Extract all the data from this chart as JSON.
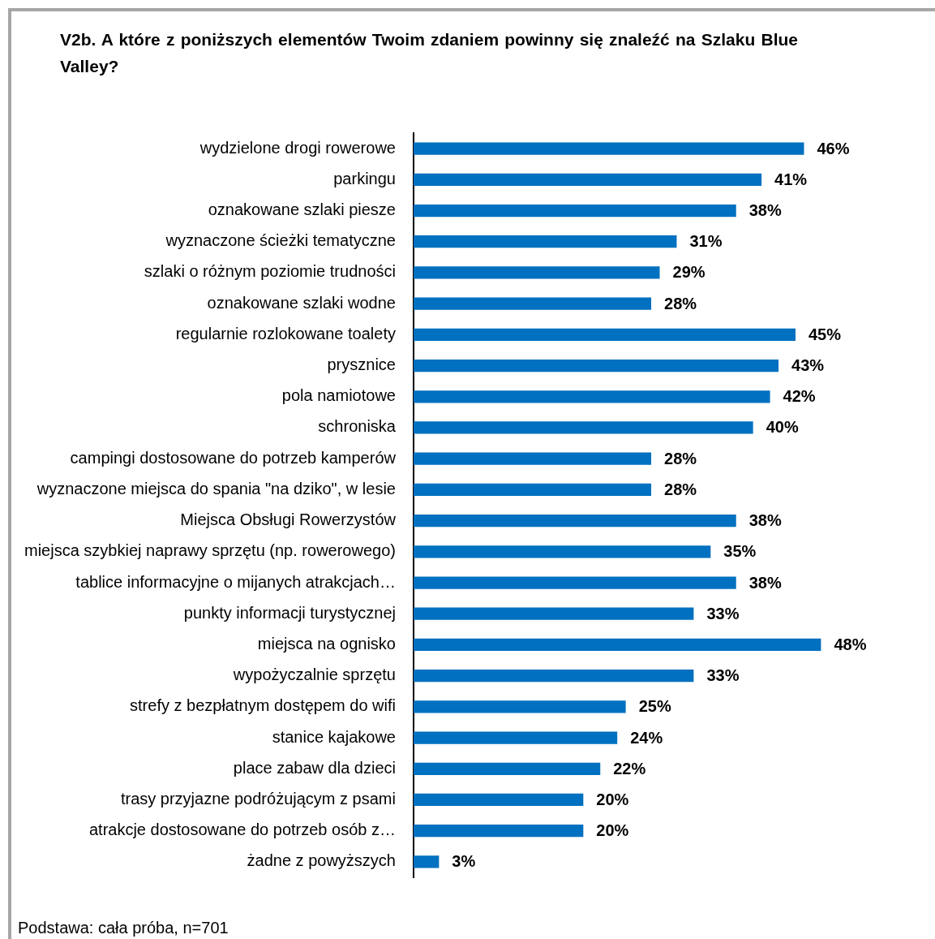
{
  "chart_data": {
    "type": "bar",
    "orientation": "horizontal",
    "title": "V2b. A które z poniższych elementów Twoim zdaniem powinny się znaleźć na Szlaku Blue Valley?",
    "categories": [
      "wydzielone drogi rowerowe",
      "parkingu",
      "oznakowane szlaki piesze",
      "wyznaczone ścieżki tematyczne",
      "szlaki o różnym poziomie trudności",
      "oznakowane szlaki wodne",
      "regularnie rozlokowane toalety",
      "prysznice",
      "pola namiotowe",
      "schroniska",
      "campingi dostosowane do potrzeb kamperów",
      "wyznaczone miejsca do spania \"na dziko\", w lesie",
      "Miejsca Obsługi Rowerzystów",
      "miejsca szybkiej naprawy sprzętu (np. rowerowego)",
      "tablice informacyjne o mijanych atrakcjach…",
      "punkty informacji turystycznej",
      "miejsca na ognisko",
      "wypożyczalnie sprzętu",
      "strefy z bezpłatnym dostępem do wifi",
      "stanice kajakowe",
      "place zabaw dla dzieci",
      "trasy przyjazne podróżującym z psami",
      "atrakcje dostosowane do potrzeb osób z…",
      "żadne z powyższych"
    ],
    "values": [
      46,
      41,
      38,
      31,
      29,
      28,
      45,
      43,
      42,
      40,
      28,
      28,
      38,
      35,
      38,
      33,
      48,
      33,
      25,
      24,
      22,
      20,
      20,
      3
    ],
    "value_labels": [
      "46%",
      "41%",
      "38%",
      "31%",
      "29%",
      "28%",
      "45%",
      "43%",
      "42%",
      "40%",
      "28%",
      "28%",
      "38%",
      "35%",
      "38%",
      "33%",
      "48%",
      "33%",
      "25%",
      "24%",
      "22%",
      "20%",
      "20%",
      "3%"
    ],
    "color": "#0070c0",
    "legend": false,
    "annotations": [
      "Podstawa: cała próba, n=701"
    ]
  }
}
